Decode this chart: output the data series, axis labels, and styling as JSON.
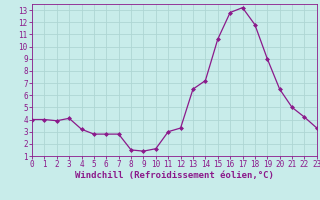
{
  "x": [
    0,
    1,
    2,
    3,
    4,
    5,
    6,
    7,
    8,
    9,
    10,
    11,
    12,
    13,
    14,
    15,
    16,
    17,
    18,
    19,
    20,
    21,
    22,
    23
  ],
  "y": [
    4.0,
    4.0,
    3.9,
    4.1,
    3.2,
    2.8,
    2.8,
    2.8,
    1.5,
    1.4,
    1.6,
    3.0,
    3.3,
    6.5,
    7.2,
    10.6,
    12.8,
    13.2,
    11.8,
    9.0,
    6.5,
    5.0,
    4.2,
    3.3
  ],
  "line_color": "#8b1a8b",
  "marker": "D",
  "marker_size": 2.0,
  "bg_color": "#c8ecea",
  "grid_color": "#aed6d4",
  "xlabel": "Windchill (Refroidissement éolien,°C)",
  "xlim": [
    0,
    23
  ],
  "ylim": [
    1,
    13.5
  ],
  "yticks": [
    1,
    2,
    3,
    4,
    5,
    6,
    7,
    8,
    9,
    10,
    11,
    12,
    13
  ],
  "xticks": [
    0,
    1,
    2,
    3,
    4,
    5,
    6,
    7,
    8,
    9,
    10,
    11,
    12,
    13,
    14,
    15,
    16,
    17,
    18,
    19,
    20,
    21,
    22,
    23
  ],
  "tick_color": "#8b1a8b",
  "label_color": "#8b1a8b",
  "spine_color": "#8b1a8b",
  "font_size": 5.5,
  "xlabel_fontsize": 6.5,
  "linewidth": 0.9
}
